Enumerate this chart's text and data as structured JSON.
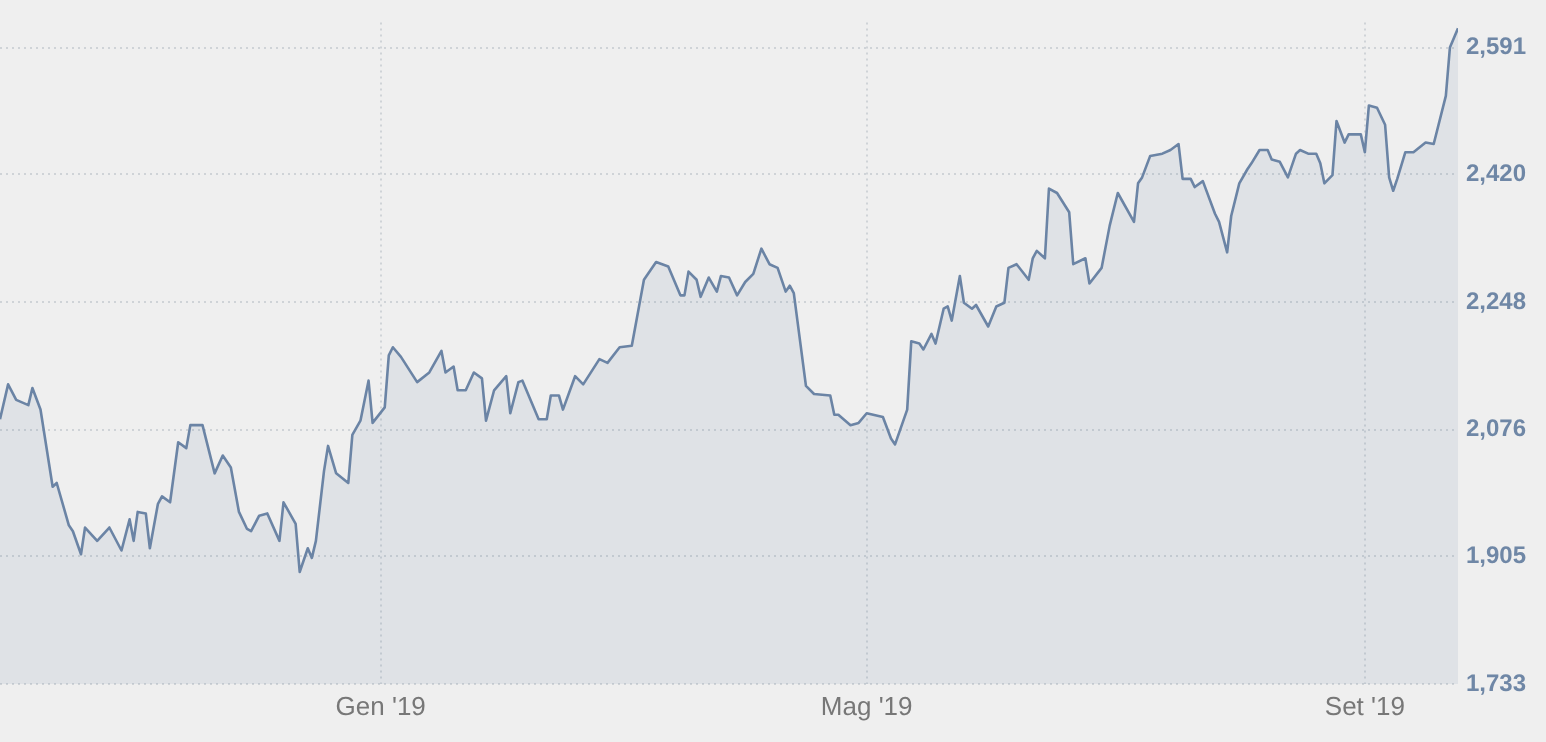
{
  "chart_data": {
    "type": "area",
    "xlim": [
      "2018-09-29",
      "2019-09-24"
    ],
    "xticks": [
      {
        "value": "2019-01-01",
        "label": "Gen '19"
      },
      {
        "value": "2019-05-01",
        "label": "Mag '19"
      },
      {
        "value": "2019-09-01",
        "label": "Set '19"
      }
    ],
    "ylim": [
      1733,
      2625
    ],
    "yticks": [
      {
        "value": 1733,
        "label": "1,733"
      },
      {
        "value": 1905,
        "label": "1,905"
      },
      {
        "value": 2076,
        "label": "2,076"
      },
      {
        "value": 2248,
        "label": "2,248"
      },
      {
        "value": 2420,
        "label": "2,420"
      },
      {
        "value": 2591,
        "label": "2,591"
      }
    ],
    "grid": true,
    "series": [
      {
        "color": "#6b84a5",
        "x": [
          "2018-09-29",
          "2018-10-01",
          "2018-10-03",
          "2018-10-06",
          "2018-10-07",
          "2018-10-09",
          "2018-10-12",
          "2018-10-13",
          "2018-10-16",
          "2018-10-17",
          "2018-10-19",
          "2018-10-20",
          "2018-10-23",
          "2018-10-26",
          "2018-10-29",
          "2018-10-31",
          "2018-11-01",
          "2018-11-02",
          "2018-11-04",
          "2018-11-05",
          "2018-11-07",
          "2018-11-08",
          "2018-11-10",
          "2018-11-12",
          "2018-11-14",
          "2018-11-15",
          "2018-11-18",
          "2018-11-21",
          "2018-11-23",
          "2018-11-25",
          "2018-11-27",
          "2018-11-29",
          "2018-11-30",
          "2018-12-02",
          "2018-12-04",
          "2018-12-07",
          "2018-12-08",
          "2018-12-11",
          "2018-12-12",
          "2018-12-14",
          "2018-12-15",
          "2018-12-16",
          "2018-12-18",
          "2018-12-19",
          "2018-12-21",
          "2018-12-24",
          "2018-12-25",
          "2018-12-27",
          "2018-12-29",
          "2018-12-30",
          "2019-01-02",
          "2019-01-03",
          "2019-01-04",
          "2019-01-06",
          "2019-01-10",
          "2019-01-13",
          "2019-01-16",
          "2019-01-17",
          "2019-01-19",
          "2019-01-20",
          "2019-01-22",
          "2019-01-24",
          "2019-01-26",
          "2019-01-27",
          "2019-01-29",
          "2019-02-01",
          "2019-02-02",
          "2019-02-04",
          "2019-02-05",
          "2019-02-09",
          "2019-02-11",
          "2019-02-12",
          "2019-02-14",
          "2019-02-15",
          "2019-02-18",
          "2019-02-20",
          "2019-02-24",
          "2019-02-26",
          "2019-03-01",
          "2019-03-04",
          "2019-03-07",
          "2019-03-10",
          "2019-03-13",
          "2019-03-16",
          "2019-03-17",
          "2019-03-18",
          "2019-03-20",
          "2019-03-21",
          "2019-03-23",
          "2019-03-25",
          "2019-03-26",
          "2019-03-28",
          "2019-03-30",
          "2019-04-01",
          "2019-04-03",
          "2019-04-05",
          "2019-04-07",
          "2019-04-09",
          "2019-04-11",
          "2019-04-12",
          "2019-04-13",
          "2019-04-16",
          "2019-04-18",
          "2019-04-22",
          "2019-04-23",
          "2019-04-24",
          "2019-04-27",
          "2019-04-29",
          "2019-05-01",
          "2019-05-05",
          "2019-05-07",
          "2019-05-08",
          "2019-05-11",
          "2019-05-12",
          "2019-05-14",
          "2019-05-15",
          "2019-05-17",
          "2019-05-18",
          "2019-05-20",
          "2019-05-21",
          "2019-05-22",
          "2019-05-24",
          "2019-05-25",
          "2019-05-27",
          "2019-05-28",
          "2019-05-31",
          "2019-06-02",
          "2019-06-04",
          "2019-06-05",
          "2019-06-07",
          "2019-06-10",
          "2019-06-11",
          "2019-06-12",
          "2019-06-14",
          "2019-06-15",
          "2019-06-17",
          "2019-06-20",
          "2019-06-21",
          "2019-06-24",
          "2019-06-25",
          "2019-06-28",
          "2019-06-30",
          "2019-07-02",
          "2019-07-06",
          "2019-07-07",
          "2019-07-08",
          "2019-07-10",
          "2019-07-13",
          "2019-07-15",
          "2019-07-17",
          "2019-07-18",
          "2019-07-20",
          "2019-07-21",
          "2019-07-23",
          "2019-07-26",
          "2019-07-27",
          "2019-07-29",
          "2019-07-30",
          "2019-08-01",
          "2019-08-03",
          "2019-08-04",
          "2019-08-06",
          "2019-08-08",
          "2019-08-09",
          "2019-08-11",
          "2019-08-13",
          "2019-08-15",
          "2019-08-16",
          "2019-08-18",
          "2019-08-20",
          "2019-08-21",
          "2019-08-22",
          "2019-08-24",
          "2019-08-25",
          "2019-08-27",
          "2019-08-28",
          "2019-08-31",
          "2019-09-01",
          "2019-09-02",
          "2019-09-04",
          "2019-09-06",
          "2019-09-07",
          "2019-09-08",
          "2019-09-09",
          "2019-09-11",
          "2019-09-13",
          "2019-09-16",
          "2019-09-18",
          "2019-09-21",
          "2019-09-22",
          "2019-09-24"
        ],
        "values": [
          2090,
          2137,
          2116,
          2109,
          2132,
          2103,
          1999,
          2004,
          1947,
          1939,
          1908,
          1944,
          1926,
          1944,
          1913,
          1955,
          1926,
          1965,
          1963,
          1916,
          1976,
          1986,
          1978,
          2059,
          2051,
          2082,
          2082,
          2017,
          2041,
          2025,
          1965,
          1942,
          1939,
          1960,
          1963,
          1926,
          1978,
          1949,
          1884,
          1916,
          1903,
          1926,
          2020,
          2054,
          2017,
          2004,
          2069,
          2088,
          2142,
          2085,
          2106,
          2176,
          2187,
          2174,
          2140,
          2153,
          2182,
          2153,
          2161,
          2129,
          2129,
          2153,
          2145,
          2088,
          2129,
          2148,
          2098,
          2140,
          2142,
          2090,
          2090,
          2122,
          2122,
          2103,
          2148,
          2137,
          2171,
          2166,
          2187,
          2189,
          2278,
          2302,
          2296,
          2257,
          2257,
          2289,
          2278,
          2255,
          2281,
          2262,
          2283,
          2281,
          2257,
          2275,
          2286,
          2320,
          2299,
          2294,
          2262,
          2270,
          2260,
          2135,
          2124,
          2122,
          2096,
          2096,
          2082,
          2085,
          2098,
          2093,
          2064,
          2056,
          2103,
          2195,
          2192,
          2184,
          2205,
          2192,
          2239,
          2242,
          2223,
          2283,
          2247,
          2239,
          2244,
          2215,
          2242,
          2247,
          2294,
          2299,
          2278,
          2307,
          2317,
          2307,
          2401,
          2395,
          2369,
          2299,
          2307,
          2273,
          2294,
          2351,
          2395,
          2356,
          2408,
          2416,
          2445,
          2448,
          2453,
          2461,
          2414,
          2414,
          2403,
          2411,
          2367,
          2356,
          2315,
          2364,
          2408,
          2427,
          2435,
          2453,
          2453,
          2440,
          2437,
          2416,
          2448,
          2453,
          2448,
          2448,
          2435,
          2408,
          2419,
          2492,
          2463,
          2474,
          2474,
          2450,
          2513,
          2510,
          2487,
          2416,
          2398,
          2414,
          2450,
          2450,
          2463,
          2461,
          2526,
          2591,
          2617
        ]
      }
    ]
  }
}
